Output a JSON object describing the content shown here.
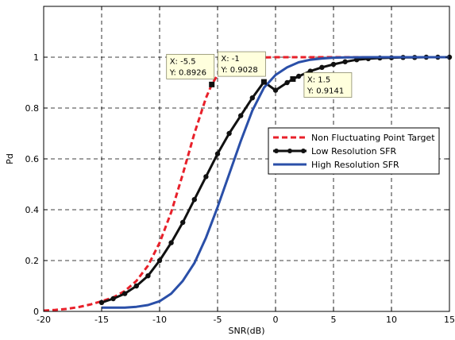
{
  "chart_data": {
    "type": "line",
    "title": "",
    "xlabel": "SNR(dB)",
    "ylabel": "Pd",
    "xlim": [
      -20,
      15
    ],
    "ylim": [
      0,
      1.2
    ],
    "x_ticks": [
      -20,
      -15,
      -10,
      -5,
      0,
      5,
      10,
      15
    ],
    "y_ticks": [
      0,
      0.2,
      0.4,
      0.6,
      0.8,
      1
    ],
    "x_tick_labels": [
      "-20",
      "-15",
      "-10",
      "-5",
      "0",
      "5",
      "10",
      "15"
    ],
    "y_tick_labels": [
      "0",
      "0.2",
      "0.4",
      "0.6",
      "0.8",
      "1"
    ],
    "grid": true,
    "grid_style": "dashed",
    "legend_position": "right",
    "series": [
      {
        "name": "Non Fluctuating Point Target",
        "color": "#e8202a",
        "style": "dashed",
        "marker": "none",
        "x": [
          -20,
          -19,
          -18,
          -17,
          -16,
          -15,
          -14,
          -13,
          -12,
          -11,
          -10,
          -9,
          -8,
          -7,
          -6,
          -5.5,
          -5,
          -4,
          -3,
          -2,
          -1,
          0,
          2,
          5,
          10,
          15
        ],
        "y": [
          0.003,
          0.006,
          0.01,
          0.017,
          0.027,
          0.04,
          0.055,
          0.08,
          0.12,
          0.18,
          0.27,
          0.39,
          0.54,
          0.7,
          0.84,
          0.8926,
          0.93,
          0.972,
          0.99,
          0.997,
          0.999,
          1.0,
          1.0,
          1.0,
          1.0,
          1.0
        ]
      },
      {
        "name": "Low Resolution SFR",
        "color": "#111111",
        "style": "solid",
        "marker": "circle",
        "x": [
          -15,
          -14,
          -13,
          -12,
          -11,
          -10,
          -9,
          -8,
          -7,
          -6,
          -5,
          -4,
          -3,
          -2,
          -1,
          0,
          1,
          1.5,
          2,
          3,
          4,
          5,
          6,
          7,
          8,
          9,
          10,
          11,
          12,
          13,
          14,
          15
        ],
        "y": [
          0.035,
          0.05,
          0.07,
          0.1,
          0.14,
          0.2,
          0.27,
          0.35,
          0.44,
          0.53,
          0.62,
          0.7,
          0.77,
          0.84,
          0.9028,
          0.87,
          0.9,
          0.9141,
          0.925,
          0.945,
          0.96,
          0.972,
          0.982,
          0.99,
          0.994,
          0.997,
          0.998,
          0.999,
          0.999,
          1.0,
          1.0,
          1.0
        ]
      },
      {
        "name": "High Resolution SFR",
        "color": "#2a4fa8",
        "style": "solid",
        "marker": "none",
        "x": [
          -15,
          -14,
          -13,
          -12,
          -11,
          -10,
          -9,
          -8,
          -7,
          -6,
          -5,
          -4,
          -3,
          -2,
          -1,
          0,
          1,
          2,
          3,
          4,
          5,
          6,
          8,
          10,
          12,
          15
        ],
        "y": [
          0.015,
          0.015,
          0.015,
          0.018,
          0.025,
          0.04,
          0.07,
          0.12,
          0.19,
          0.29,
          0.41,
          0.54,
          0.67,
          0.79,
          0.88,
          0.93,
          0.96,
          0.98,
          0.99,
          0.995,
          0.998,
          0.999,
          1.0,
          1.0,
          1.0,
          1.0
        ]
      }
    ],
    "annotations": [
      {
        "x": -5.5,
        "y": 0.8926,
        "line1": "X: -5.5",
        "line2": "Y: 0.8926"
      },
      {
        "x": -1,
        "y": 0.9028,
        "line1": "X: -1",
        "line2": "Y: 0.9028"
      },
      {
        "x": 1.5,
        "y": 0.9141,
        "line1": "X: 1.5",
        "line2": "Y: 0.9141"
      }
    ]
  }
}
